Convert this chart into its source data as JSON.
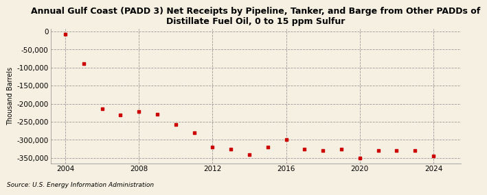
{
  "title": "Annual Gulf Coast (PADD 3) Net Receipts by Pipeline, Tanker, and Barge from Other PADDs of\nDistillate Fuel Oil, 0 to 15 ppm Sulfur",
  "ylabel": "Thousand Barrels",
  "source": "Source: U.S. Energy Information Administration",
  "background_color": "#f5f0e1",
  "plot_bg_color": "#f5f0e1",
  "marker_color": "#cc0000",
  "years": [
    2004,
    2005,
    2006,
    2007,
    2008,
    2009,
    2010,
    2011,
    2012,
    2013,
    2014,
    2015,
    2016,
    2017,
    2018,
    2019,
    2020,
    2021,
    2022,
    2023,
    2024
  ],
  "values": [
    -8000,
    -90000,
    -215000,
    -232000,
    -222000,
    -230000,
    -258000,
    -280000,
    -320000,
    -325000,
    -340000,
    -320000,
    -300000,
    -325000,
    -330000,
    -325000,
    -350000,
    -330000,
    -330000,
    -330000,
    -345000
  ],
  "ylim": [
    -365000,
    8000
  ],
  "yticks": [
    0,
    -50000,
    -100000,
    -150000,
    -200000,
    -250000,
    -300000,
    -350000
  ],
  "xlim": [
    2003.2,
    2025.5
  ],
  "xticks": [
    2004,
    2008,
    2012,
    2016,
    2020,
    2024
  ],
  "title_fontsize": 9,
  "tick_fontsize": 7.5,
  "ylabel_fontsize": 7,
  "source_fontsize": 6.5
}
